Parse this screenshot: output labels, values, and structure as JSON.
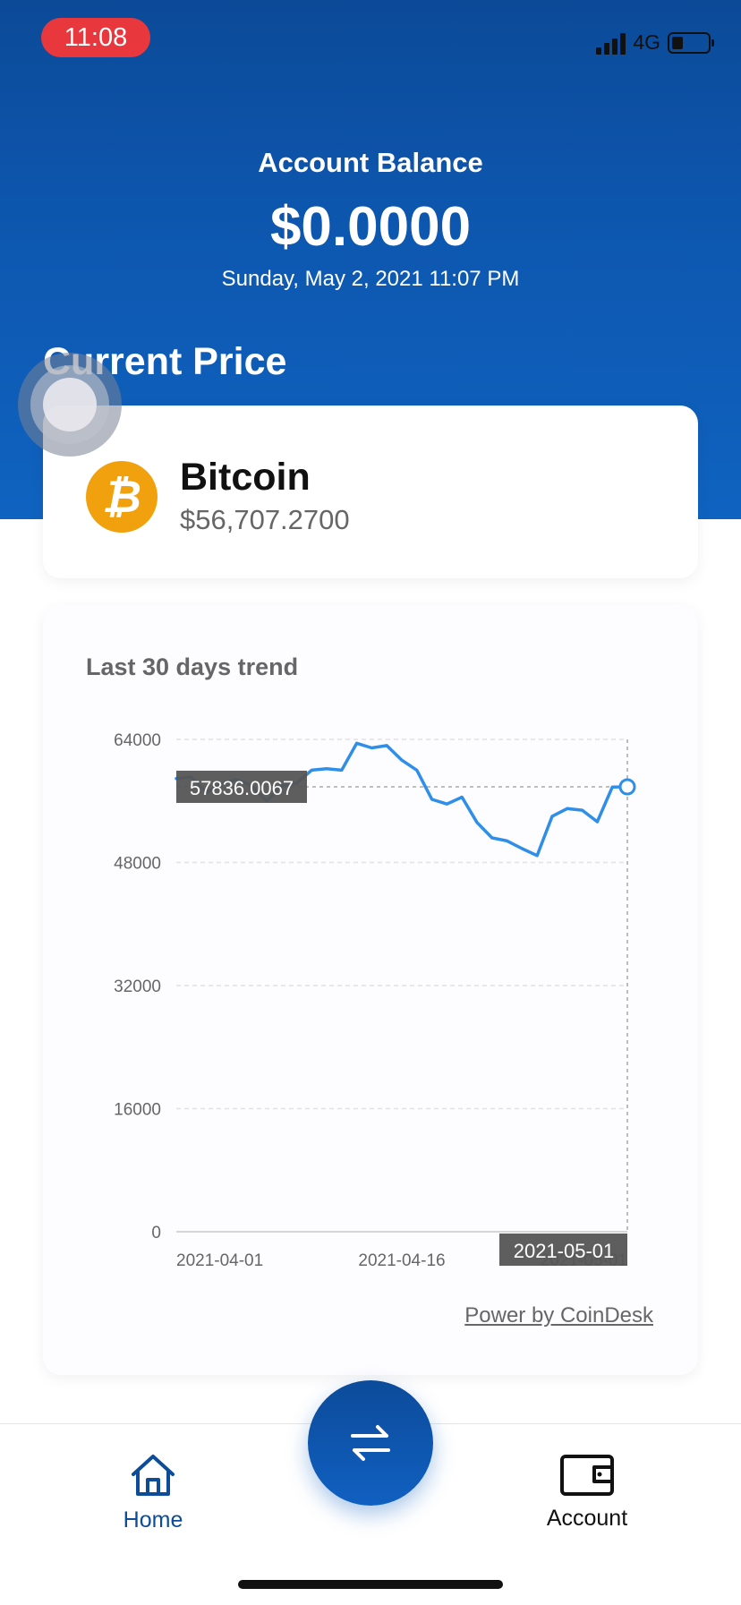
{
  "status_bar": {
    "time": "11:08",
    "network": "4G"
  },
  "header": {
    "title": "Account Balance",
    "balance": "$0.0000",
    "datetime": "Sunday, May 2, 2021 11:07 PM",
    "section_title": "Current Price"
  },
  "coin": {
    "name": "Bitcoin",
    "symbol_icon": "bitcoin-icon",
    "price": "$56,707.2700",
    "icon_color": "#f1a10e"
  },
  "chart_card": {
    "title": "Last 30 days trend",
    "credit": "Power by CoinDesk"
  },
  "chart_data": {
    "type": "line",
    "title": "Last 30 days trend",
    "ylim": [
      0,
      64000
    ],
    "yticks": [
      0,
      16000,
      32000,
      48000,
      64000
    ],
    "ytick_labels": [
      "0",
      "16000",
      "32000",
      "48000",
      "64000"
    ],
    "xtick_labels": [
      "2021-04-01",
      "2021-04-16",
      "2021-05-01"
    ],
    "grid": true,
    "series": [
      {
        "color": "#2f8fe8",
        "x": [
          "2021-04-01",
          "2021-04-02",
          "2021-04-03",
          "2021-04-04",
          "2021-04-05",
          "2021-04-06",
          "2021-04-07",
          "2021-04-08",
          "2021-04-09",
          "2021-04-10",
          "2021-04-11",
          "2021-04-12",
          "2021-04-13",
          "2021-04-14",
          "2021-04-15",
          "2021-04-16",
          "2021-04-17",
          "2021-04-18",
          "2021-04-19",
          "2021-04-20",
          "2021-04-21",
          "2021-04-22",
          "2021-04-23",
          "2021-04-24",
          "2021-04-25",
          "2021-04-26",
          "2021-04-27",
          "2021-04-28",
          "2021-04-29",
          "2021-04-30",
          "2021-05-01"
        ],
        "values": [
          58900,
          59100,
          57100,
          58200,
          58800,
          58000,
          56000,
          57900,
          58300,
          60000,
          60200,
          60000,
          63500,
          62900,
          63200,
          61300,
          60000,
          56200,
          55600,
          56500,
          53200,
          51200,
          50800,
          49800,
          48900,
          54000,
          55000,
          54800,
          53300,
          57800,
          57836.0067
        ]
      }
    ],
    "tooltip": {
      "value": "57836.0067",
      "date": "2021-05-01"
    }
  },
  "bottom_nav": {
    "home_label": "Home",
    "account_label": "Account",
    "center_icon": "swap-arrows-icon"
  }
}
